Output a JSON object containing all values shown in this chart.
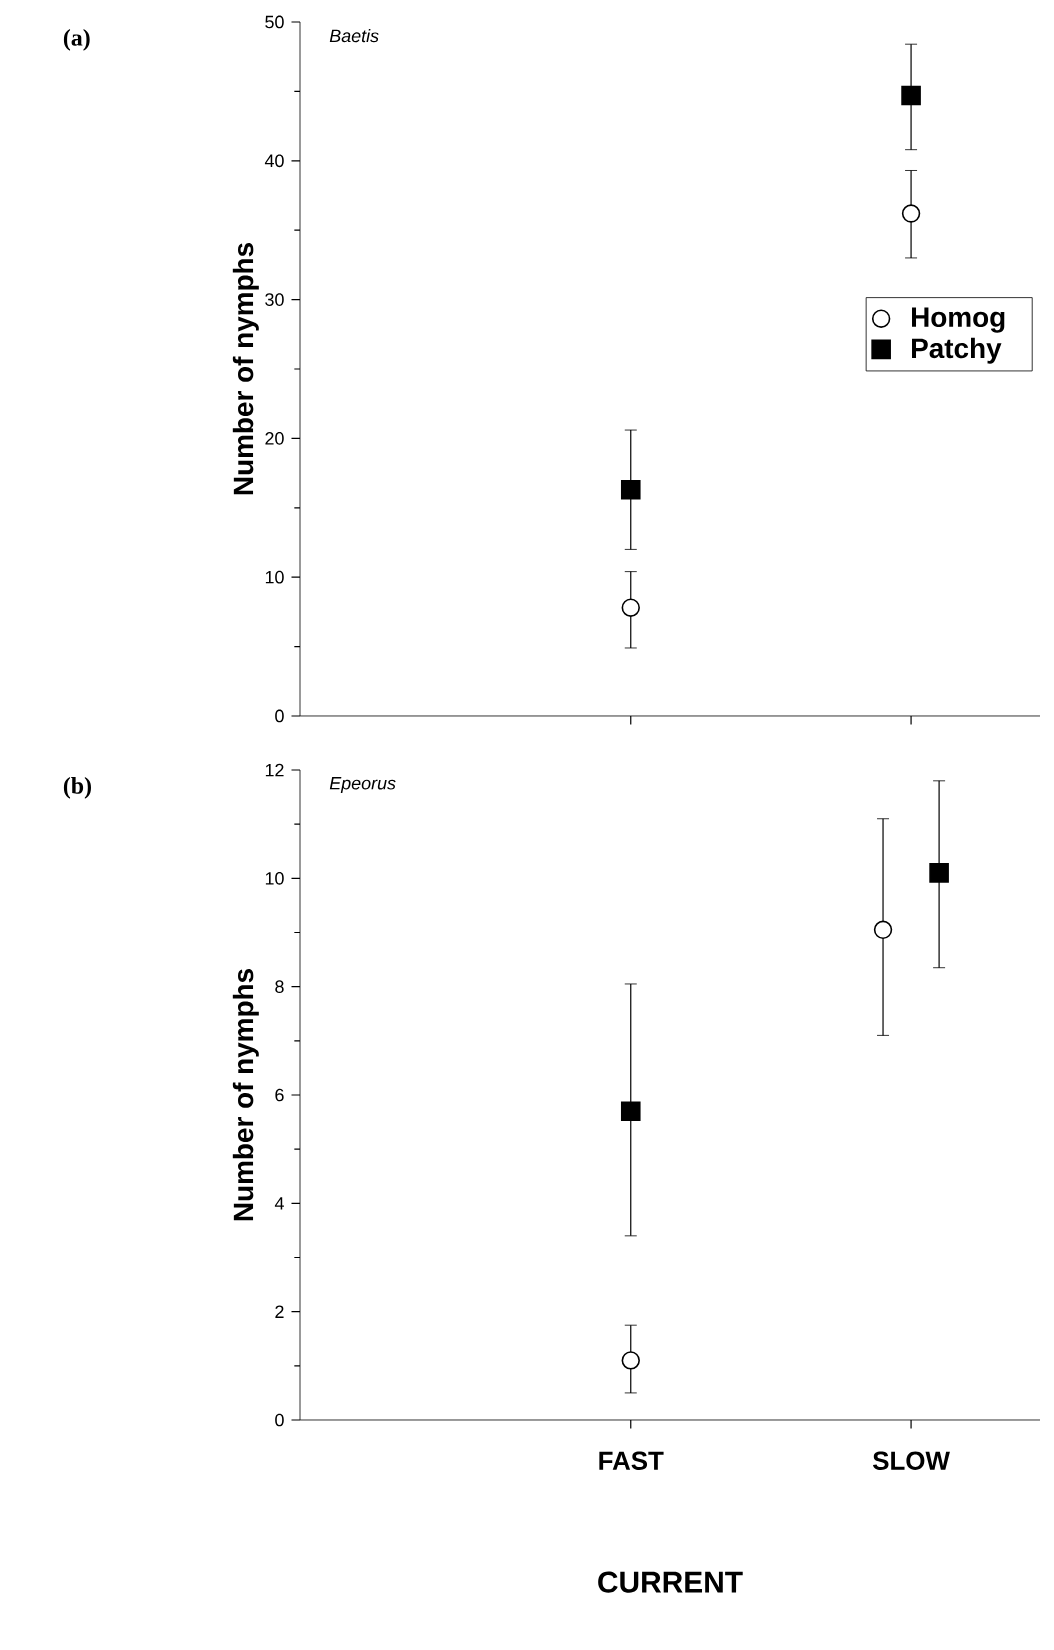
{
  "chart_data": [
    {
      "type": "scatter",
      "title": "Baetis",
      "ylabel": "Number of nymphs",
      "annotations": [
        "(a)"
      ],
      "categories": [
        null,
        null
      ],
      "legend": "right",
      "grid": false,
      "ylim": [
        0,
        50
      ],
      "yticks": [
        0,
        10,
        20,
        30,
        40,
        50
      ],
      "series": [
        {
          "name": "Homog",
          "color": "#ffffff",
          "marker": "circle",
          "values": [
            7.8,
            36.2
          ],
          "errors": [
            [
              4.9,
              10.4
            ],
            [
              33.0,
              39.3
            ]
          ]
        },
        {
          "name": "Patchy",
          "color": "#000000",
          "marker": "square",
          "values": [
            16.3,
            44.7
          ],
          "errors": [
            [
              12.0,
              20.6
            ],
            [
              40.8,
              48.4
            ]
          ]
        }
      ]
    },
    {
      "type": "scatter",
      "title": "Epeorus",
      "ylabel": "Number of nymphs",
      "xlabel": "CURRENT",
      "annotations": [
        "(b)"
      ],
      "categories": [
        "FAST",
        "SLOW"
      ],
      "legend": false,
      "grid": false,
      "ylim": [
        0,
        12
      ],
      "yticks": [
        0,
        2,
        4,
        6,
        8,
        10,
        12
      ],
      "series": [
        {
          "color": "#ffffff",
          "marker": "circle",
          "values": [
            1.1,
            9.05
          ],
          "errors": [
            [
              0.5,
              1.75
            ],
            [
              7.1,
              11.1
            ]
          ]
        },
        {
          "color": "#000000",
          "marker": "square",
          "values": [
            5.7,
            10.1
          ],
          "errors": [
            [
              3.4,
              8.05
            ],
            [
              8.35,
              11.8
            ]
          ]
        }
      ]
    }
  ]
}
